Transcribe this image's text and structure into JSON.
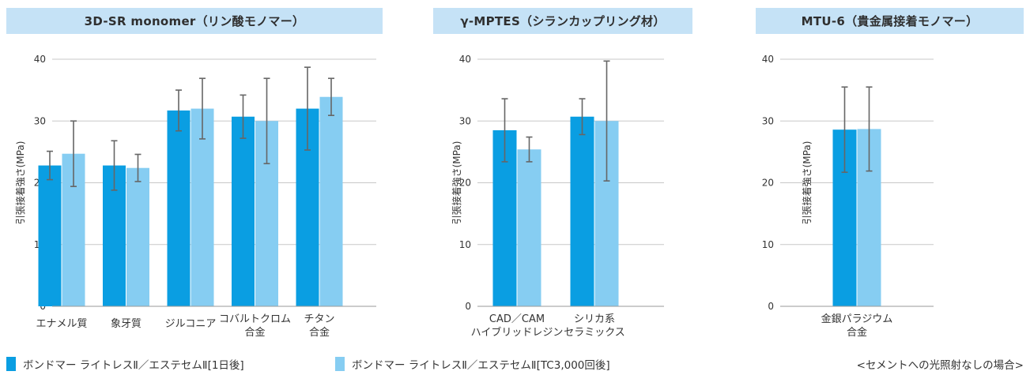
{
  "chart_data": [
    {
      "type": "bar",
      "title": "3D-SR monomer（リン酸モノマー）",
      "ylabel": "引張接着強さ(MPa)",
      "ylim": [
        0,
        40
      ],
      "yticks": [
        0,
        10,
        20,
        30,
        40
      ],
      "grid": true,
      "categories": [
        [
          "エナメル質"
        ],
        [
          "象牙質"
        ],
        [
          "ジルコニア"
        ],
        [
          "コバルトクロム",
          "合金"
        ],
        [
          "チタン",
          "合金"
        ]
      ],
      "series": [
        {
          "name": "ボンドマー ライトレスⅡ／エステセムⅡ[1日後]",
          "values": [
            22.8,
            22.8,
            31.7,
            30.7,
            32.0
          ],
          "errors": [
            2.3,
            4.0,
            3.3,
            3.5,
            6.7
          ]
        },
        {
          "name": "ボンドマー ライトレスⅡ／エステセムⅡ[TC3,000回後]",
          "values": [
            24.7,
            22.4,
            32.0,
            30.0,
            33.9
          ],
          "errors": [
            5.3,
            2.2,
            4.9,
            6.9,
            3.0
          ]
        }
      ]
    },
    {
      "type": "bar",
      "title": "γ-MPTES（シランカップリング材）",
      "ylabel": "引張接着強さ(MPa)",
      "ylim": [
        0,
        40
      ],
      "yticks": [
        0,
        10,
        20,
        30,
        40
      ],
      "grid": true,
      "categories": [
        [
          "CAD／CAM",
          "ハイブリッドレジン"
        ],
        [
          "シリカ系",
          "セラミックス"
        ]
      ],
      "series": [
        {
          "name": "ボンドマー ライトレスⅡ／エステセムⅡ[1日後]",
          "values": [
            28.5,
            30.7
          ],
          "errors": [
            5.1,
            2.9
          ]
        },
        {
          "name": "ボンドマー ライトレスⅡ／エステセムⅡ[TC3,000回後]",
          "values": [
            25.4,
            30.0
          ],
          "errors": [
            2.0,
            9.7
          ]
        }
      ]
    },
    {
      "type": "bar",
      "title": "MTU-6（貴金属接着モノマー）",
      "ylabel": "引張接着強さ(MPa)",
      "ylim": [
        0,
        40
      ],
      "yticks": [
        0,
        10,
        20,
        30,
        40
      ],
      "grid": true,
      "categories": [
        [
          "金銀パラジウム",
          "合金"
        ]
      ],
      "series": [
        {
          "name": "ボンドマー ライトレスⅡ／エステセムⅡ[1日後]",
          "values": [
            28.6
          ],
          "errors": [
            6.9
          ]
        },
        {
          "name": "ボンドマー ライトレスⅡ／エステセムⅡ[TC3,000回後]",
          "values": [
            28.7
          ],
          "errors": [
            6.8
          ]
        }
      ]
    }
  ],
  "legend": {
    "day1": "ボンドマー ライトレスⅡ／エステセムⅡ[1日後]",
    "tc3000": "ボンドマー ライトレスⅡ／エステセムⅡ[TC3,000回後]"
  },
  "note": "<セメントへの光照射なしの場合>",
  "colors": {
    "day1": "#0a9ee2",
    "tc3000": "#86cdf2",
    "title_bg": "#c5e2f6",
    "grid": "#c8c8c8",
    "error_bar": "#666666"
  }
}
